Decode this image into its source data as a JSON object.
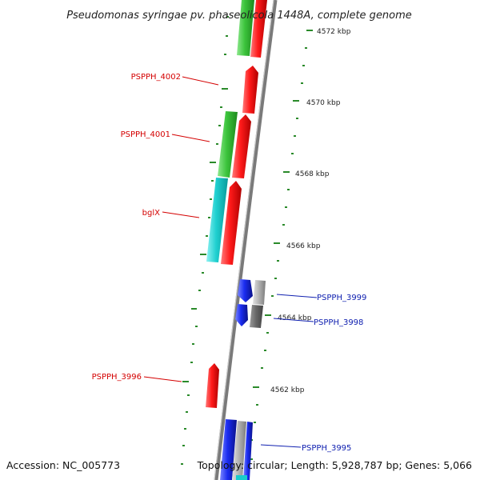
{
  "title": "Pseudomonas syringae pv. phaseolicola 1448A, complete genome",
  "footer": {
    "accession": "Accession: NC_005773",
    "topology": "Topology: circular; Length: 5,928,787 bp; Genes: 5,066"
  },
  "scale_labels": [
    "4572 kbp",
    "4570 kbp",
    "4568 kbp",
    "4566 kbp",
    "4564 kbp",
    "4562 kbp"
  ],
  "gene_labels": {
    "pspph_4002": "PSPPH_4002",
    "pspph_4001": "PSPPH_4001",
    "bglx": "bglX",
    "pspph_3996": "PSPPH_3996",
    "pspph_3999": "PSPPH_3999",
    "pspph_3998": "PSPPH_3998",
    "pspph_3995": "PSPPH_3995"
  },
  "colors": {
    "forward_label": "#d40000",
    "reverse_label": "#1020b0",
    "tick_green": "#2a8a2a",
    "backbone": "#7a7a7a",
    "gene_red": "#ee1111",
    "gene_green": "#33c033",
    "gene_cyan": "#18cccc",
    "gene_blue": "#1426e0",
    "gene_gray": "#9a9a9a"
  }
}
